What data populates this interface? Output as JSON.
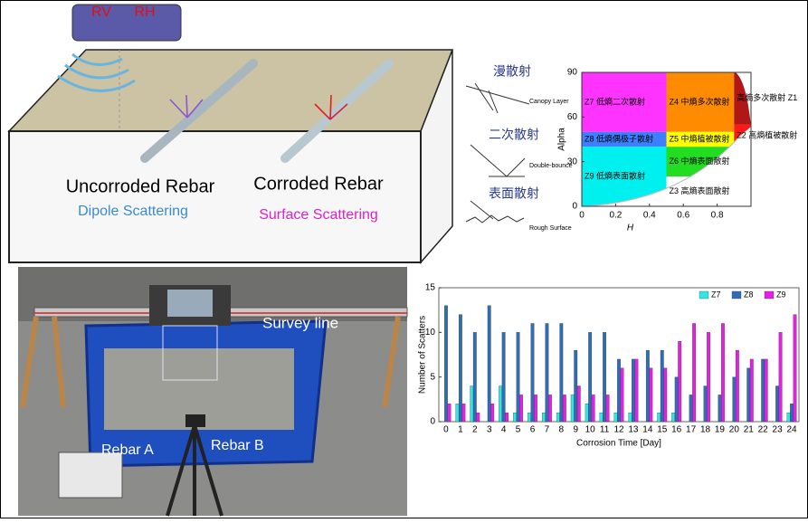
{
  "diagram": {
    "sensor": [
      "RV",
      "RH"
    ],
    "left_rebar": "Uncorroded Rebar",
    "left_mechanism": "Dipole Scattering",
    "right_rebar": "Corroded Rebar",
    "right_mechanism": "Surface Scattering"
  },
  "icons": [
    {
      "label": "漫散射",
      "note": "Canopy Layer"
    },
    {
      "label": "二次散射",
      "note": "Double-bounce"
    },
    {
      "label": "表面散射",
      "note": "Rough Surface"
    }
  ],
  "photo": {
    "survey": "Survey line",
    "rebar_a": "Rebar A",
    "rebar_b": "Rebar B"
  },
  "chart_data": [
    {
      "type": "plane",
      "xlabel": "H",
      "ylabel": "Alpha",
      "xlim": [
        0,
        1
      ],
      "ylim": [
        0,
        90
      ],
      "xticks": [
        0,
        0.2,
        0.4,
        0.6,
        0.8
      ],
      "yticks": [
        0,
        30,
        60,
        90
      ],
      "zones": [
        {
          "name": "Z7 低熵二次散射",
          "color": "#ff33ff",
          "h": [
            0,
            0.5
          ],
          "alpha": [
            50,
            90
          ]
        },
        {
          "name": "Z8 低熵偶极子散射",
          "color": "#3d7fff",
          "h": [
            0,
            0.5
          ],
          "alpha": [
            40,
            50
          ]
        },
        {
          "name": "Z9 低熵表面散射",
          "color": "#00f0f0",
          "h": [
            0,
            0.5
          ],
          "alpha": [
            0,
            40
          ]
        },
        {
          "name": "Z4 中熵多次散射",
          "color": "#ff8c00",
          "h": [
            0.5,
            0.9
          ],
          "alpha": [
            50,
            90
          ]
        },
        {
          "name": "Z5 中熵植被散射",
          "color": "#ffff00",
          "h": [
            0.5,
            0.9
          ],
          "alpha": [
            40,
            50
          ]
        },
        {
          "name": "Z6 中熵表面散射",
          "color": "#22dd22",
          "h": [
            0.5,
            0.9
          ],
          "alpha": [
            20,
            40
          ]
        },
        {
          "name": "Z3 高熵表面散射",
          "color": "#ffffff",
          "h": [
            0.5,
            0.9
          ],
          "alpha": [
            0,
            20
          ]
        },
        {
          "name": "高熵多次散射 Z1",
          "color": "#b01818",
          "h": [
            0.9,
            1
          ],
          "alpha": [
            55,
            90
          ]
        },
        {
          "name": "Z2 高熵植被散射",
          "color": "#ff1a1a",
          "h": [
            0.9,
            1
          ],
          "alpha": [
            40,
            55
          ]
        }
      ]
    },
    {
      "type": "bar",
      "xlabel": "Corrosion Time [Day]",
      "ylabel": "Number of Scatters",
      "categories": [
        "0",
        "1",
        "2",
        "3",
        "4",
        "5",
        "6",
        "7",
        "8",
        "9",
        "10",
        "11",
        "12",
        "13",
        "14",
        "15",
        "16",
        "17",
        "18",
        "19",
        "20",
        "21",
        "22",
        "23",
        "24"
      ],
      "ylim": [
        0,
        15
      ],
      "yticks": [
        0,
        5,
        10,
        15
      ],
      "series": [
        {
          "name": "Z7",
          "color": "#33e6e6",
          "values": [
            0,
            2,
            4,
            0,
            4,
            1,
            1,
            1,
            1,
            3,
            2,
            1,
            1,
            1,
            0,
            1,
            1,
            0,
            0,
            0,
            0,
            0,
            0,
            0,
            1
          ]
        },
        {
          "name": "Z8",
          "color": "#2f6db5",
          "values": [
            13,
            12,
            10,
            13,
            10,
            10,
            11,
            11,
            11,
            8,
            10,
            10,
            7,
            7,
            8,
            8,
            5,
            3,
            4,
            3,
            5,
            6,
            7,
            4,
            2
          ]
        },
        {
          "name": "Z9",
          "color": "#e61ee6",
          "values": [
            2,
            2,
            1,
            2,
            1,
            3,
            3,
            3,
            3,
            4,
            3,
            3,
            6,
            7,
            6,
            6,
            9,
            11,
            10,
            11,
            8,
            7,
            7,
            10,
            12
          ]
        }
      ]
    }
  ]
}
